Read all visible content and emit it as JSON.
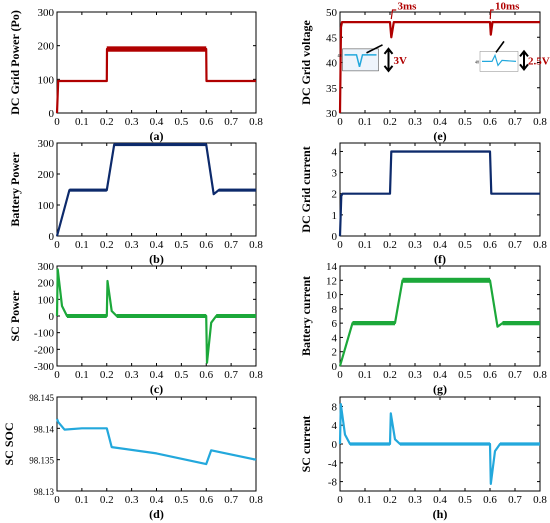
{
  "colors": {
    "red": "#b00000",
    "navy": "#0d2a6b",
    "green": "#1ca83a",
    "cyan": "#23a8dc",
    "black": "#000000"
  },
  "chart_data": [
    {
      "id": "a",
      "type": "line",
      "caption": "(a)",
      "ylabel": "DC Grid Power (Po)",
      "color": "#b00000",
      "xlim": [
        0,
        0.8
      ],
      "ylim": [
        0,
        300
      ],
      "xticks": [
        0,
        0.1,
        0.2,
        0.3,
        0.4,
        0.5,
        0.6,
        0.7,
        0.8
      ],
      "xticklabels": [
        "0",
        "0.1",
        "0.2",
        "0.3",
        "0.4",
        "0.5",
        "0.6",
        "0.7",
        "0.8"
      ],
      "yticks": [
        0,
        100,
        200,
        300
      ],
      "yticklabels": [
        "0",
        "100",
        "200",
        "300"
      ],
      "series": [
        {
          "x": [
            0,
            0.005,
            0.2,
            0.201,
            0.6,
            0.601,
            0.8
          ],
          "y": [
            0,
            95,
            95,
            190,
            190,
            95,
            95
          ],
          "band": [
            [
              0.2,
              0.6,
              8
            ]
          ]
        }
      ]
    },
    {
      "id": "e",
      "type": "line",
      "caption": "(e)",
      "ylabel": "DC Grid voltage",
      "color": "#b00000",
      "xlim": [
        0,
        0.8
      ],
      "ylim": [
        30,
        50
      ],
      "xticks": [
        0,
        0.1,
        0.2,
        0.3,
        0.4,
        0.5,
        0.6,
        0.7,
        0.8
      ],
      "xticklabels": [
        "0",
        "0.1",
        "0.2",
        "0.3",
        "0.4",
        "0.5",
        "0.6",
        "0.7",
        "0.8"
      ],
      "yticks": [
        30,
        35,
        40,
        45,
        50
      ],
      "yticklabels": [
        "30",
        "35",
        "40",
        "45",
        "50"
      ],
      "series": [
        {
          "x": [
            0,
            0.004,
            0.008,
            0.2,
            0.205,
            0.215,
            0.6,
            0.603,
            0.61,
            0.8
          ],
          "y": [
            30,
            47,
            48,
            48,
            45,
            48,
            48,
            45.5,
            48,
            48
          ]
        }
      ],
      "annotations": [
        {
          "text": "3ms",
          "x": 0.225,
          "y": 50.5
        },
        {
          "text": "10ms",
          "x": 0.61,
          "y": 50.5
        },
        {
          "text": "3V",
          "x": 0.06,
          "y": 38
        },
        {
          "text": "2.5V",
          "x": 0.725,
          "y": 38
        }
      ],
      "inset_labels": [
        "48",
        "48"
      ]
    },
    {
      "id": "b",
      "type": "line",
      "caption": "(b)",
      "ylabel": "Battery Power",
      "color": "#0d2a6b",
      "xlim": [
        0,
        0.8
      ],
      "ylim": [
        0,
        300
      ],
      "xticks": [
        0,
        0.1,
        0.2,
        0.3,
        0.4,
        0.5,
        0.6,
        0.7,
        0.8
      ],
      "xticklabels": [
        "0",
        "0.1",
        "0.2",
        "0.3",
        "0.4",
        "0.5",
        "0.6",
        "0.7",
        "0.8"
      ],
      "yticks": [
        0,
        100,
        200,
        300
      ],
      "yticklabels": [
        "0",
        "100",
        "200",
        "300"
      ],
      "series": [
        {
          "x": [
            0,
            0.05,
            0.2,
            0.23,
            0.6,
            0.63,
            0.65,
            0.8
          ],
          "y": [
            0,
            148,
            148,
            295,
            295,
            135,
            148,
            148
          ],
          "band": [
            [
              0.05,
              0.2,
              5
            ],
            [
              0.23,
              0.6,
              5
            ],
            [
              0.65,
              0.8,
              5
            ]
          ]
        }
      ]
    },
    {
      "id": "f",
      "type": "line",
      "caption": "(f)",
      "ylabel": "DC Grid current",
      "color": "#0d2a6b",
      "xlim": [
        0,
        0.8
      ],
      "ylim": [
        0,
        4.4
      ],
      "xticks": [
        0,
        0.1,
        0.2,
        0.3,
        0.4,
        0.5,
        0.6,
        0.7,
        0.8
      ],
      "xticklabels": [
        "0",
        "0.1",
        "0.2",
        "0.3",
        "0.4",
        "0.5",
        "0.6",
        "0.7",
        "0.8"
      ],
      "yticks": [
        0,
        1,
        2,
        3,
        4
      ],
      "yticklabels": [
        "0",
        "1",
        "2",
        "3",
        "4"
      ],
      "series": [
        {
          "x": [
            0,
            0.005,
            0.01,
            0.2,
            0.205,
            0.6,
            0.605,
            0.8
          ],
          "y": [
            0,
            1.9,
            2,
            2,
            4,
            4,
            2,
            2
          ],
          "band": [
            [
              0.205,
              0.6,
              0.04
            ]
          ]
        }
      ]
    },
    {
      "id": "c",
      "type": "line",
      "caption": "(c)",
      "ylabel": "SC Power",
      "color": "#1ca83a",
      "xlim": [
        0,
        0.8
      ],
      "ylim": [
        -300,
        300
      ],
      "xticks": [
        0,
        0.1,
        0.2,
        0.3,
        0.4,
        0.5,
        0.6,
        0.7,
        0.8
      ],
      "xticklabels": [
        "0",
        "0.1",
        "0.2",
        "0.3",
        "0.4",
        "0.5",
        "0.6",
        "0.7",
        "0.8"
      ],
      "yticks": [
        -300,
        -200,
        -100,
        0,
        100,
        200,
        300
      ],
      "yticklabels": [
        "-300",
        "-200",
        "-100",
        "0",
        "100",
        "200",
        "300"
      ],
      "series": [
        {
          "x": [
            0,
            0.003,
            0.02,
            0.04,
            0.2,
            0.203,
            0.22,
            0.24,
            0.6,
            0.603,
            0.62,
            0.64,
            0.8
          ],
          "y": [
            0,
            280,
            60,
            0,
            0,
            210,
            30,
            0,
            0,
            -280,
            -40,
            0,
            0
          ],
          "band": [
            [
              0.04,
              0.2,
              12
            ],
            [
              0.24,
              0.6,
              12
            ],
            [
              0.64,
              0.8,
              12
            ]
          ]
        }
      ]
    },
    {
      "id": "g",
      "type": "line",
      "caption": "(g)",
      "ylabel": "Battery current",
      "color": "#1ca83a",
      "xlim": [
        0,
        0.8
      ],
      "ylim": [
        0,
        14
      ],
      "xticks": [
        0,
        0.1,
        0.2,
        0.3,
        0.4,
        0.5,
        0.6,
        0.7,
        0.8
      ],
      "xticklabels": [
        "0",
        "0.1",
        "0.2",
        "0.3",
        "0.4",
        "0.5",
        "0.6",
        "0.7",
        "0.8"
      ],
      "yticks": [
        0,
        2,
        4,
        6,
        8,
        10,
        12,
        14
      ],
      "yticklabels": [
        "0",
        "2",
        "4",
        "6",
        "8",
        "10",
        "12",
        "14"
      ],
      "series": [
        {
          "x": [
            0,
            0.05,
            0.22,
            0.25,
            0.6,
            0.63,
            0.65,
            0.8
          ],
          "y": [
            0,
            6,
            6,
            12,
            12,
            5.5,
            6,
            6
          ],
          "band": [
            [
              0.05,
              0.22,
              0.3
            ],
            [
              0.25,
              0.6,
              0.35
            ],
            [
              0.65,
              0.8,
              0.3
            ]
          ]
        }
      ]
    },
    {
      "id": "d",
      "type": "line",
      "caption": "(d)",
      "ylabel": "SC SOC",
      "color": "#23a8dc",
      "xlim": [
        0,
        0.8
      ],
      "ylim": [
        98.13,
        98.145
      ],
      "xticks": [
        0,
        0.1,
        0.2,
        0.3,
        0.4,
        0.5,
        0.6,
        0.7,
        0.8
      ],
      "xticklabels": [
        "0",
        "0.1",
        "0.2",
        "0.3",
        "0.4",
        "0.5",
        "0.6",
        "0.7",
        "0.8"
      ],
      "yticks": [
        98.13,
        98.135,
        98.14,
        98.145
      ],
      "yticklabels": [
        "98.13",
        "98.135",
        "98.14",
        "98.145"
      ],
      "series": [
        {
          "x": [
            0,
            0.005,
            0.03,
            0.1,
            0.2,
            0.22,
            0.4,
            0.6,
            0.62,
            0.8
          ],
          "y": [
            98.1415,
            98.141,
            98.1398,
            98.14,
            98.14,
            98.137,
            98.136,
            98.1343,
            98.1365,
            98.135
          ]
        }
      ]
    },
    {
      "id": "h",
      "type": "line",
      "caption": "(h)",
      "ylabel": "SC current",
      "color": "#23a8dc",
      "xlim": [
        0,
        0.8
      ],
      "ylim": [
        -10,
        10
      ],
      "xticks": [
        0,
        0.1,
        0.2,
        0.3,
        0.4,
        0.5,
        0.6,
        0.7,
        0.8
      ],
      "xticklabels": [
        "0",
        "0.1",
        "0.2",
        "0.3",
        "0.4",
        "0.5",
        "0.6",
        "0.7",
        "0.8"
      ],
      "yticks": [
        -8,
        -4,
        0,
        4,
        8
      ],
      "yticklabels": [
        "-8",
        "-4",
        "0",
        "4",
        "8"
      ],
      "series": [
        {
          "x": [
            0,
            0.003,
            0.02,
            0.04,
            0.2,
            0.203,
            0.22,
            0.24,
            0.6,
            0.603,
            0.62,
            0.64,
            0.8
          ],
          "y": [
            0,
            8.5,
            2,
            0,
            0,
            6.5,
            1,
            0,
            0,
            -8.5,
            -1.5,
            0,
            0
          ],
          "band": [
            [
              0.04,
              0.2,
              0.35
            ],
            [
              0.24,
              0.6,
              0.35
            ],
            [
              0.64,
              0.8,
              0.35
            ]
          ]
        }
      ]
    }
  ]
}
